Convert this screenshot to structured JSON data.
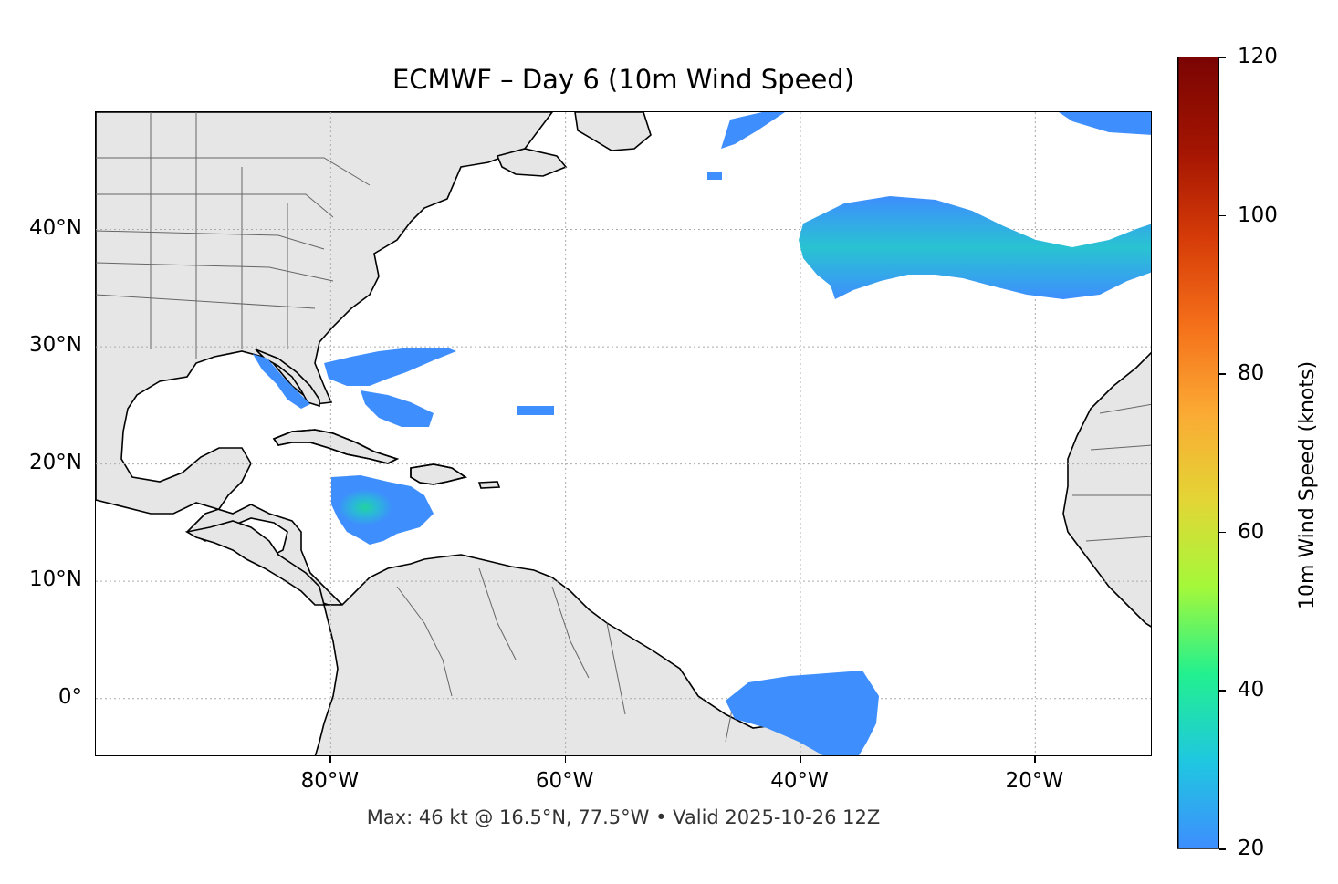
{
  "title": "ECMWF – Day 6 (10m Wind Speed)",
  "subtitle": "Max: 46 kt @ 16.5°N, 77.5°W • Valid 2025-10-26 12Z",
  "map": {
    "lon_range": [
      -100,
      -10
    ],
    "lat_range": [
      -5,
      50
    ],
    "lat_ticks": [
      {
        "value": 40,
        "label": "40°N"
      },
      {
        "value": 30,
        "label": "30°N"
      },
      {
        "value": 20,
        "label": "20°N"
      },
      {
        "value": 10,
        "label": "10°N"
      },
      {
        "value": 0,
        "label": "0°"
      }
    ],
    "lon_ticks": [
      {
        "value": -80,
        "label": "80°W"
      },
      {
        "value": -60,
        "label": "60°W"
      },
      {
        "value": -40,
        "label": "40°W"
      },
      {
        "value": -20,
        "label": "20°W"
      }
    ],
    "land_color": "#e6e6e6",
    "max_point": {
      "lat": 16.5,
      "lon": -77.5,
      "speed_kt": 46
    }
  },
  "colorbar": {
    "label": "10m Wind Speed (knots)",
    "min": 20,
    "max": 120,
    "ticks": [
      20,
      40,
      60,
      80,
      100,
      120
    ],
    "extend": "max",
    "colormap": "turbo",
    "colors": [
      "#3e8efe",
      "#1fc7e0",
      "#22f08f",
      "#a4f83a",
      "#e3d535",
      "#fbaa34",
      "#f5701a",
      "#d63c08",
      "#a41502",
      "#7a0403"
    ]
  },
  "wind_areas": [
    {
      "name": "caribbean-system",
      "center": {
        "lat": 16.5,
        "lon": -77.5
      },
      "peak_kt": 46
    },
    {
      "name": "bahamas-band",
      "peak_kt": 28
    },
    {
      "name": "mid-atlantic-band",
      "peak_kt": 34
    },
    {
      "name": "equatorial-band",
      "peak_kt": 26
    }
  ]
}
